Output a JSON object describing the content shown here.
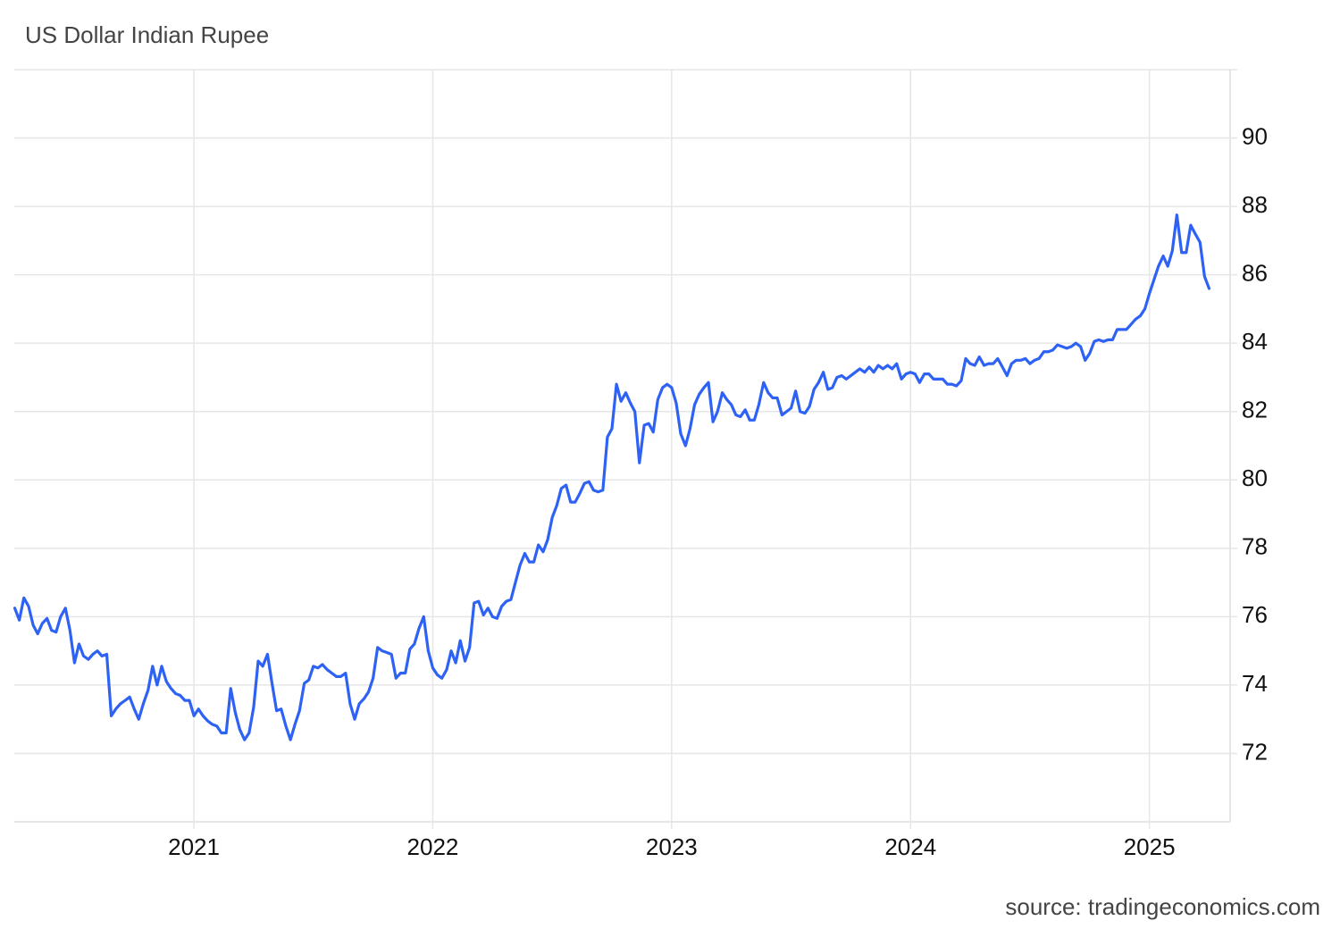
{
  "chart_data": {
    "type": "line",
    "title": "US Dollar Indian Rupee",
    "source": "source: tradingeconomics.com",
    "color": "#2e62f5",
    "grid": true,
    "xlim": [
      2020.248,
      2025.338
    ],
    "ylim": [
      70,
      92
    ],
    "xticks": [
      2021,
      2022,
      2023,
      2024,
      2025
    ],
    "yticks": [
      72,
      74,
      76,
      78,
      80,
      82,
      84,
      86,
      88,
      90
    ],
    "x": [
      2020.25,
      2020.269,
      2020.288,
      2020.308,
      2020.327,
      2020.346,
      2020.365,
      2020.385,
      2020.404,
      2020.423,
      2020.442,
      2020.462,
      2020.481,
      2020.5,
      2020.519,
      2020.538,
      2020.558,
      2020.577,
      2020.596,
      2020.615,
      2020.635,
      2020.654,
      2020.673,
      2020.692,
      2020.712,
      2020.731,
      2020.75,
      2020.769,
      2020.788,
      2020.808,
      2020.827,
      2020.846,
      2020.865,
      2020.885,
      2020.904,
      2020.923,
      2020.942,
      2020.962,
      2020.981,
      2021,
      2021.019,
      2021.038,
      2021.058,
      2021.077,
      2021.096,
      2021.115,
      2021.135,
      2021.154,
      2021.173,
      2021.192,
      2021.212,
      2021.231,
      2021.25,
      2021.269,
      2021.288,
      2021.308,
      2021.327,
      2021.346,
      2021.365,
      2021.385,
      2021.404,
      2021.423,
      2021.442,
      2021.462,
      2021.481,
      2021.5,
      2021.519,
      2021.538,
      2021.558,
      2021.577,
      2021.596,
      2021.615,
      2021.635,
      2021.654,
      2021.673,
      2021.692,
      2021.712,
      2021.731,
      2021.75,
      2021.769,
      2021.788,
      2021.808,
      2021.827,
      2021.846,
      2021.865,
      2021.885,
      2021.904,
      2021.923,
      2021.942,
      2021.962,
      2021.981,
      2022,
      2022.019,
      2022.038,
      2022.058,
      2022.077,
      2022.096,
      2022.115,
      2022.135,
      2022.154,
      2022.173,
      2022.192,
      2022.212,
      2022.231,
      2022.25,
      2022.269,
      2022.288,
      2022.308,
      2022.327,
      2022.346,
      2022.365,
      2022.385,
      2022.404,
      2022.423,
      2022.442,
      2022.462,
      2022.481,
      2022.5,
      2022.519,
      2022.538,
      2022.558,
      2022.577,
      2022.596,
      2022.615,
      2022.635,
      2022.654,
      2022.673,
      2022.692,
      2022.712,
      2022.731,
      2022.75,
      2022.769,
      2022.788,
      2022.808,
      2022.827,
      2022.846,
      2022.865,
      2022.885,
      2022.904,
      2022.923,
      2022.942,
      2022.962,
      2022.981,
      2023,
      2023.019,
      2023.038,
      2023.058,
      2023.077,
      2023.096,
      2023.115,
      2023.135,
      2023.154,
      2023.173,
      2023.192,
      2023.212,
      2023.231,
      2023.25,
      2023.269,
      2023.288,
      2023.308,
      2023.327,
      2023.346,
      2023.365,
      2023.385,
      2023.404,
      2023.423,
      2023.442,
      2023.462,
      2023.481,
      2023.5,
      2023.519,
      2023.538,
      2023.558,
      2023.577,
      2023.596,
      2023.615,
      2023.635,
      2023.654,
      2023.673,
      2023.692,
      2023.712,
      2023.731,
      2023.75,
      2023.769,
      2023.788,
      2023.808,
      2023.827,
      2023.846,
      2023.865,
      2023.885,
      2023.904,
      2023.923,
      2023.942,
      2023.962,
      2023.981,
      2024,
      2024.019,
      2024.038,
      2024.058,
      2024.077,
      2024.096,
      2024.115,
      2024.135,
      2024.154,
      2024.173,
      2024.192,
      2024.212,
      2024.231,
      2024.25,
      2024.269,
      2024.288,
      2024.308,
      2024.327,
      2024.346,
      2024.365,
      2024.385,
      2024.404,
      2024.423,
      2024.442,
      2024.462,
      2024.481,
      2024.5,
      2024.519,
      2024.538,
      2024.558,
      2024.577,
      2024.596,
      2024.615,
      2024.635,
      2024.654,
      2024.673,
      2024.692,
      2024.712,
      2024.731,
      2024.75,
      2024.769,
      2024.788,
      2024.808,
      2024.827,
      2024.846,
      2024.865,
      2024.885,
      2024.904,
      2024.923,
      2024.942,
      2024.962,
      2024.981,
      2025,
      2025.019,
      2025.038,
      2025.058,
      2025.077,
      2025.096,
      2025.115,
      2025.135,
      2025.154,
      2025.173,
      2025.192,
      2025.212,
      2025.231,
      2025.25
    ],
    "values": [
      76.25,
      75.9,
      76.55,
      76.3,
      75.75,
      75.5,
      75.8,
      75.95,
      75.6,
      75.55,
      76.0,
      76.25,
      75.6,
      74.65,
      75.2,
      74.85,
      74.75,
      74.9,
      75.0,
      74.85,
      74.9,
      73.1,
      73.3,
      73.45,
      73.55,
      73.65,
      73.3,
      73.0,
      73.45,
      73.85,
      74.55,
      74.0,
      74.55,
      74.1,
      73.9,
      73.75,
      73.7,
      73.55,
      73.55,
      73.1,
      73.3,
      73.1,
      72.95,
      72.85,
      72.8,
      72.6,
      72.6,
      73.9,
      73.2,
      72.7,
      72.4,
      72.6,
      73.35,
      74.7,
      74.55,
      74.9,
      74.05,
      73.25,
      73.3,
      72.8,
      72.4,
      72.85,
      73.25,
      74.05,
      74.15,
      74.55,
      74.5,
      74.6,
      74.45,
      74.35,
      74.25,
      74.25,
      74.35,
      73.45,
      73.0,
      73.45,
      73.6,
      73.8,
      74.2,
      75.1,
      75.0,
      74.95,
      74.9,
      74.2,
      74.35,
      74.35,
      75.05,
      75.2,
      75.65,
      76.0,
      75.0,
      74.5,
      74.3,
      74.2,
      74.45,
      75.0,
      74.65,
      75.3,
      74.7,
      75.1,
      76.4,
      76.45,
      76.05,
      76.25,
      76.0,
      75.95,
      76.3,
      76.45,
      76.5,
      77.0,
      77.5,
      77.85,
      77.6,
      77.6,
      78.1,
      77.9,
      78.25,
      78.9,
      79.25,
      79.75,
      79.85,
      79.35,
      79.35,
      79.6,
      79.9,
      79.95,
      79.7,
      79.65,
      79.7,
      81.25,
      81.5,
      82.8,
      82.3,
      82.55,
      82.25,
      82.0,
      80.5,
      81.6,
      81.65,
      81.4,
      82.35,
      82.7,
      82.8,
      82.7,
      82.25,
      81.35,
      81.0,
      81.5,
      82.2,
      82.5,
      82.7,
      82.85,
      81.7,
      82.0,
      82.55,
      82.35,
      82.2,
      81.9,
      81.85,
      82.05,
      81.75,
      81.75,
      82.2,
      82.85,
      82.55,
      82.4,
      82.4,
      81.9,
      82.0,
      82.1,
      82.6,
      82.0,
      81.95,
      82.15,
      82.65,
      82.85,
      83.15,
      82.65,
      82.7,
      83.0,
      83.05,
      82.95,
      83.05,
      83.15,
      83.25,
      83.15,
      83.3,
      83.15,
      83.35,
      83.25,
      83.35,
      83.25,
      83.4,
      82.95,
      83.1,
      83.15,
      83.1,
      82.85,
      83.1,
      83.1,
      82.95,
      82.95,
      82.95,
      82.8,
      82.8,
      82.75,
      82.9,
      83.55,
      83.4,
      83.35,
      83.6,
      83.35,
      83.4,
      83.4,
      83.55,
      83.3,
      83.05,
      83.4,
      83.5,
      83.5,
      83.55,
      83.4,
      83.5,
      83.55,
      83.75,
      83.75,
      83.8,
      83.95,
      83.9,
      83.85,
      83.9,
      84.0,
      83.9,
      83.5,
      83.7,
      84.05,
      84.1,
      84.05,
      84.1,
      84.1,
      84.4,
      84.4,
      84.4,
      84.55,
      84.7,
      84.8,
      85.0,
      85.45,
      85.85,
      86.25,
      86.55,
      86.25,
      86.7,
      87.75,
      86.65,
      86.65,
      87.45,
      87.2,
      86.95,
      85.95,
      85.6
    ]
  }
}
